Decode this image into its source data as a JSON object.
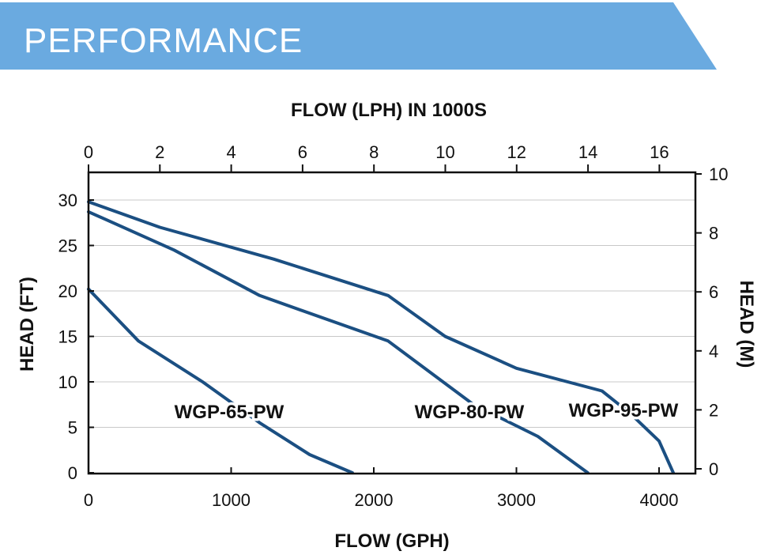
{
  "header": {
    "title": "PERFORMANCE",
    "color": "#6aaae0"
  },
  "chart_data": {
    "type": "line",
    "title": "",
    "xlabel_bottom": "FLOW (GPH)",
    "xlabel_top": "FLOW (LPH) IN 1000S",
    "ylabel_left": "HEAD (FT)",
    "ylabel_right": "HEAD (M)",
    "xlim_bottom": [
      0,
      4250
    ],
    "ylim_left": [
      0,
      31
    ],
    "xticks_bottom": [
      0,
      1000,
      2000,
      3000,
      4000
    ],
    "yticks_left": [
      0,
      5,
      10,
      15,
      20,
      25,
      30
    ],
    "xticks_top": [
      0,
      2,
      4,
      6,
      8,
      10,
      12,
      14,
      16
    ],
    "yticks_right": [
      0,
      2,
      4,
      6,
      8,
      10
    ],
    "grid": true,
    "line_color": "#1b4f82",
    "series": [
      {
        "name": "WGP-65-PW",
        "x": [
          0,
          350,
          800,
          1200,
          1550,
          1850
        ],
        "y": [
          20.2,
          14.5,
          10,
          5.5,
          2,
          0
        ]
      },
      {
        "name": "WGP-80-PW",
        "x": [
          0,
          600,
          1200,
          2100,
          2700,
          3150,
          3500
        ],
        "y": [
          28.7,
          24.5,
          19.5,
          14.5,
          7.5,
          4,
          0
        ]
      },
      {
        "name": "WGP-95-PW",
        "x": [
          0,
          500,
          1300,
          2100,
          2500,
          3000,
          3600,
          3800,
          4000,
          4100
        ],
        "y": [
          29.8,
          27,
          23.5,
          19.5,
          15,
          11.5,
          9,
          6.5,
          3.5,
          0
        ]
      }
    ]
  }
}
